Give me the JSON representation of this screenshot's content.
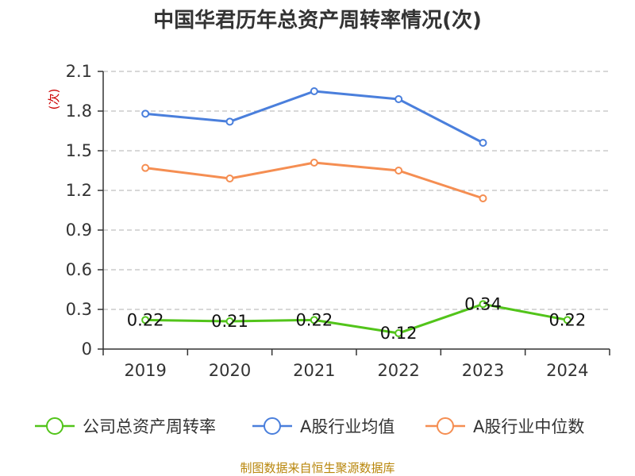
{
  "chart_data": {
    "type": "line",
    "title": "中国华君历年总资产周转率情况(次)",
    "ylabel": "(次)",
    "xlabel": "",
    "categories": [
      "2019",
      "2020",
      "2021",
      "2022",
      "2023",
      "2024"
    ],
    "ylim": [
      0,
      2.1
    ],
    "yticks": [
      "0",
      "0.3",
      "0.6",
      "0.9",
      "1.2",
      "1.5",
      "1.8",
      "2.1"
    ],
    "grid": true,
    "legend_position": "bottom",
    "series": [
      {
        "name": "公司总资产周转率",
        "color": "#52c41a",
        "values": [
          0.22,
          0.21,
          0.22,
          0.12,
          0.34,
          0.22
        ],
        "labels": [
          "0.22",
          "0.21",
          "0.22",
          "0.12",
          "0.34",
          "0.22"
        ]
      },
      {
        "name": "A股行业均值",
        "color": "#4a7fdc",
        "values": [
          1.78,
          1.72,
          1.95,
          1.89,
          1.56,
          null
        ]
      },
      {
        "name": "A股行业中位数",
        "color": "#f58e52",
        "values": [
          1.37,
          1.29,
          1.41,
          1.35,
          1.14,
          null
        ]
      }
    ],
    "source": "制图数据来自恒生聚源数据库"
  }
}
